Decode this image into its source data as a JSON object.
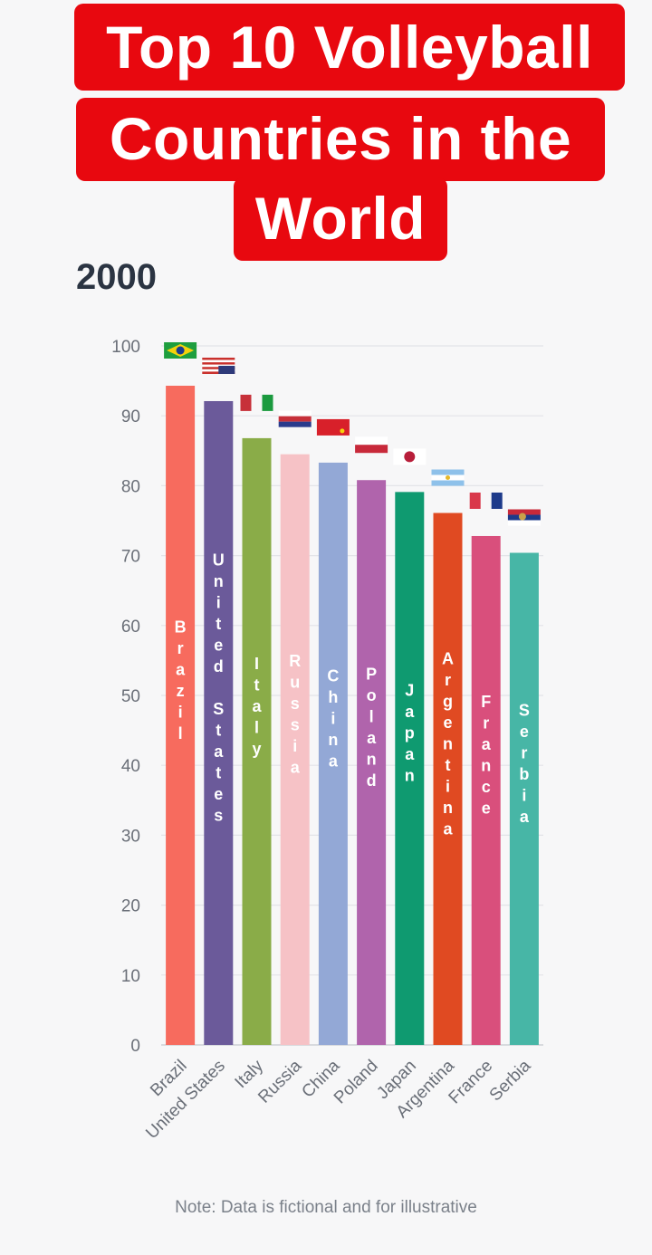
{
  "title": {
    "line1": "Top 10 Volleyball",
    "line2": "Countries in the",
    "line3": "World"
  },
  "year": "2000",
  "note": "Note: Data is fictional and for illustrative",
  "chart_data": {
    "type": "bar",
    "categories": [
      "Brazil",
      "United States",
      "Italy",
      "Russia",
      "China",
      "Poland",
      "Japan",
      "Argentina",
      "France",
      "Serbia"
    ],
    "values": [
      94.3,
      92.1,
      86.8,
      84.5,
      83.3,
      80.8,
      79.1,
      76.1,
      72.8,
      70.4
    ],
    "colors": [
      "#f76b5e",
      "#6b5a9a",
      "#8aac48",
      "#f6c2c6",
      "#93a8d6",
      "#b064ac",
      "#0f9a70",
      "#e04a22",
      "#d94f7c",
      "#47b6a6"
    ],
    "bar_labels": [
      "Brazil",
      "United States",
      "Italy",
      "Russia",
      "China",
      "Poland",
      "Japan",
      "Argentina",
      "France",
      "Serbia"
    ],
    "flags": [
      "brazil-flag-icon",
      "usa-flag-icon",
      "italy-flag-icon",
      "russia-flag-icon",
      "china-flag-icon",
      "poland-flag-icon",
      "japan-flag-icon",
      "argentina-flag-icon",
      "france-flag-icon",
      "serbia-flag-icon"
    ],
    "yticks": [
      "0",
      "10",
      "20",
      "30",
      "40",
      "50",
      "60",
      "70",
      "80",
      "90",
      "100"
    ],
    "ylim": [
      0,
      100
    ],
    "grid": true,
    "legend": "none"
  }
}
